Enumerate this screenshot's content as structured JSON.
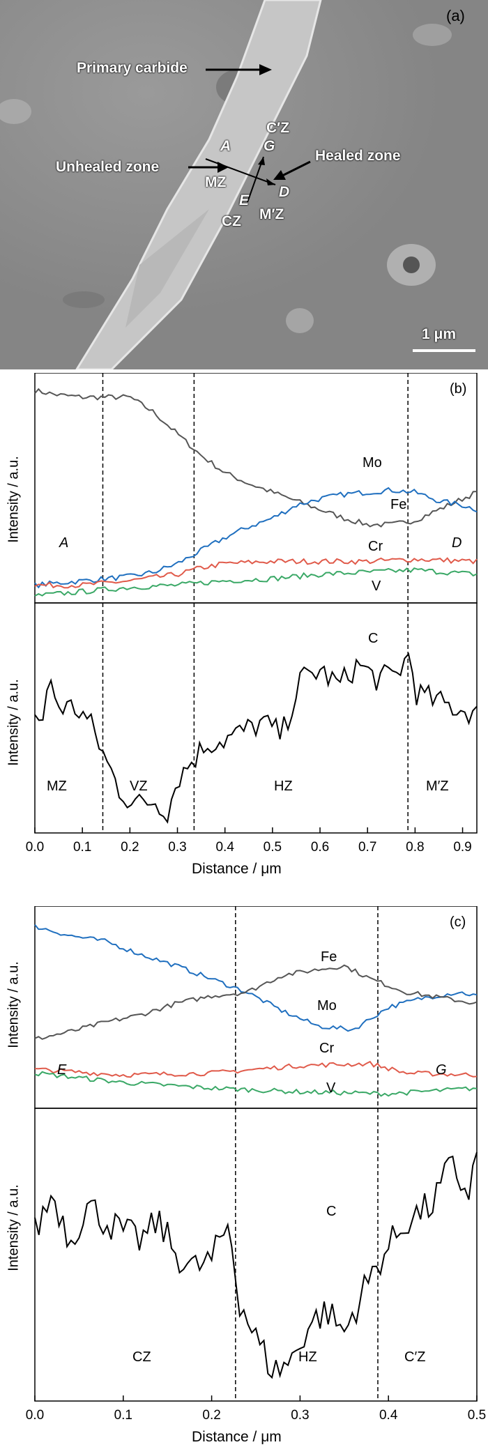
{
  "panel_a": {
    "label": "(a)",
    "annotations": {
      "primary_carbide": "Primary carbide",
      "unhealed_zone": "Unhealed zone",
      "healed_zone": "Healed zone",
      "mz": "MZ",
      "cz": "CZ",
      "mpz": "M′Z",
      "cpz": "C′Z",
      "point_a": "A",
      "point_d": "D",
      "point_e": "E",
      "point_g": "G"
    },
    "scale_bar": "1 μm"
  },
  "panel_b": {
    "label": "(b)",
    "ylabel_top": "Intensity / a.u.",
    "ylabel_bottom": "Intensity / a.u.",
    "xlabel": "Distance / μm",
    "series_labels": {
      "mo": "Mo",
      "fe": "Fe",
      "cr": "Cr",
      "v": "V",
      "c": "C"
    },
    "endpoint_left": "A",
    "endpoint_right": "D",
    "zones": [
      "MZ",
      "VZ",
      "HZ",
      "M′Z"
    ],
    "ticks": [
      "0.0",
      "0.1",
      "0.2",
      "0.3",
      "0.4",
      "0.5",
      "0.6",
      "0.7",
      "0.8",
      "0.9"
    ]
  },
  "panel_c": {
    "label": "(c)",
    "ylabel_top": "Intensity / a.u.",
    "ylabel_bottom": "Intensity / a.u.",
    "xlabel": "Distance / μm",
    "series_labels": {
      "fe": "Fe",
      "mo": "Mo",
      "cr": "Cr",
      "v": "V",
      "c": "C"
    },
    "endpoint_left": "E",
    "endpoint_right": "G",
    "zones": [
      "CZ",
      "HZ",
      "C′Z"
    ],
    "ticks": [
      "0.0",
      "0.1",
      "0.2",
      "0.3",
      "0.4",
      "0.5"
    ]
  },
  "chart_data": [
    {
      "type": "line",
      "panel": "b-top",
      "xlim": [
        0,
        0.93
      ],
      "boundaries": [
        0.143,
        0.335,
        0.785
      ],
      "series": [
        {
          "name": "Fe",
          "color": "#555555",
          "x": [
            0,
            0.05,
            0.1,
            0.15,
            0.2,
            0.25,
            0.3,
            0.35,
            0.4,
            0.45,
            0.5,
            0.55,
            0.6,
            0.65,
            0.7,
            0.75,
            0.8,
            0.85,
            0.9,
            0.93
          ],
          "y": [
            0.95,
            0.93,
            0.92,
            0.92,
            0.92,
            0.85,
            0.75,
            0.65,
            0.57,
            0.52,
            0.48,
            0.44,
            0.4,
            0.36,
            0.33,
            0.33,
            0.35,
            0.4,
            0.45,
            0.48
          ]
        },
        {
          "name": "Mo",
          "color": "#1f6fbf",
          "x": [
            0,
            0.05,
            0.1,
            0.15,
            0.2,
            0.25,
            0.3,
            0.35,
            0.4,
            0.45,
            0.5,
            0.55,
            0.6,
            0.65,
            0.7,
            0.75,
            0.8,
            0.85,
            0.9,
            0.93
          ],
          "y": [
            0.05,
            0.06,
            0.07,
            0.08,
            0.09,
            0.11,
            0.15,
            0.21,
            0.27,
            0.32,
            0.36,
            0.42,
            0.45,
            0.47,
            0.48,
            0.49,
            0.48,
            0.44,
            0.42,
            0.4
          ]
        },
        {
          "name": "Cr",
          "color": "#e05a4a",
          "x": [
            0,
            0.1,
            0.2,
            0.3,
            0.35,
            0.4,
            0.5,
            0.6,
            0.7,
            0.8,
            0.93
          ],
          "y": [
            0.05,
            0.05,
            0.07,
            0.1,
            0.13,
            0.15,
            0.16,
            0.16,
            0.16,
            0.17,
            0.16
          ]
        },
        {
          "name": "V",
          "color": "#3aa866",
          "x": [
            0,
            0.1,
            0.2,
            0.3,
            0.4,
            0.5,
            0.6,
            0.7,
            0.8,
            0.93
          ],
          "y": [
            0.0,
            0.02,
            0.04,
            0.05,
            0.07,
            0.08,
            0.1,
            0.11,
            0.12,
            0.1
          ]
        }
      ]
    },
    {
      "type": "line",
      "panel": "b-bottom",
      "xlim": [
        0,
        0.93
      ],
      "series": [
        {
          "name": "C",
          "color": "#000000",
          "x": [
            0,
            0.02,
            0.03,
            0.05,
            0.08,
            0.1,
            0.12,
            0.15,
            0.18,
            0.2,
            0.22,
            0.25,
            0.28,
            0.3,
            0.33,
            0.36,
            0.4,
            0.44,
            0.48,
            0.52,
            0.56,
            0.6,
            0.64,
            0.68,
            0.72,
            0.76,
            0.79,
            0.8,
            0.84,
            0.88,
            0.93
          ],
          "y": [
            0.52,
            0.48,
            0.7,
            0.55,
            0.55,
            0.52,
            0.46,
            0.3,
            0.16,
            0.12,
            0.1,
            0.12,
            0.07,
            0.22,
            0.3,
            0.38,
            0.4,
            0.44,
            0.48,
            0.42,
            0.68,
            0.72,
            0.65,
            0.75,
            0.68,
            0.7,
            0.8,
            0.62,
            0.58,
            0.55,
            0.52
          ]
        }
      ]
    },
    {
      "type": "line",
      "panel": "c-top",
      "xlim": [
        0,
        0.5
      ],
      "boundaries": [
        0.227,
        0.388
      ],
      "series": [
        {
          "name": "Mo",
          "color": "#1f6fbf",
          "x": [
            0,
            0.04,
            0.08,
            0.12,
            0.16,
            0.2,
            0.24,
            0.28,
            0.32,
            0.36,
            0.4,
            0.44,
            0.48,
            0.5
          ],
          "y": [
            0.93,
            0.88,
            0.85,
            0.78,
            0.72,
            0.65,
            0.58,
            0.48,
            0.4,
            0.38,
            0.5,
            0.55,
            0.58,
            0.56
          ]
        },
        {
          "name": "Fe",
          "color": "#555555",
          "x": [
            0,
            0.04,
            0.08,
            0.12,
            0.16,
            0.2,
            0.24,
            0.28,
            0.32,
            0.35,
            0.38,
            0.42,
            0.46,
            0.5
          ],
          "y": [
            0.33,
            0.37,
            0.42,
            0.46,
            0.52,
            0.56,
            0.58,
            0.67,
            0.7,
            0.72,
            0.65,
            0.58,
            0.55,
            0.52
          ]
        },
        {
          "name": "Cr",
          "color": "#e05a4a",
          "x": [
            0,
            0.1,
            0.2,
            0.3,
            0.38,
            0.42,
            0.5
          ],
          "y": [
            0.17,
            0.14,
            0.15,
            0.19,
            0.2,
            0.15,
            0.14
          ]
        },
        {
          "name": "V",
          "color": "#3aa866",
          "x": [
            0,
            0.1,
            0.2,
            0.3,
            0.4,
            0.5
          ],
          "y": [
            0.15,
            0.1,
            0.07,
            0.05,
            0.04,
            0.07
          ]
        }
      ]
    },
    {
      "type": "line",
      "panel": "c-bottom",
      "xlim": [
        0,
        0.5
      ],
      "series": [
        {
          "name": "C",
          "color": "#000000",
          "x": [
            0,
            0.02,
            0.04,
            0.06,
            0.08,
            0.1,
            0.12,
            0.14,
            0.16,
            0.18,
            0.2,
            0.22,
            0.23,
            0.25,
            0.27,
            0.29,
            0.31,
            0.33,
            0.35,
            0.37,
            0.39,
            0.42,
            0.45,
            0.47,
            0.49,
            0.5
          ],
          "y": [
            0.58,
            0.72,
            0.55,
            0.68,
            0.62,
            0.58,
            0.55,
            0.62,
            0.5,
            0.45,
            0.48,
            0.62,
            0.35,
            0.2,
            0.08,
            0.12,
            0.25,
            0.3,
            0.22,
            0.36,
            0.48,
            0.62,
            0.68,
            0.82,
            0.72,
            0.85
          ]
        }
      ]
    }
  ],
  "colors": {
    "fe": "#555555",
    "mo": "#1f6fbf",
    "cr": "#e05a4a",
    "v": "#3aa866",
    "c": "#000000"
  }
}
